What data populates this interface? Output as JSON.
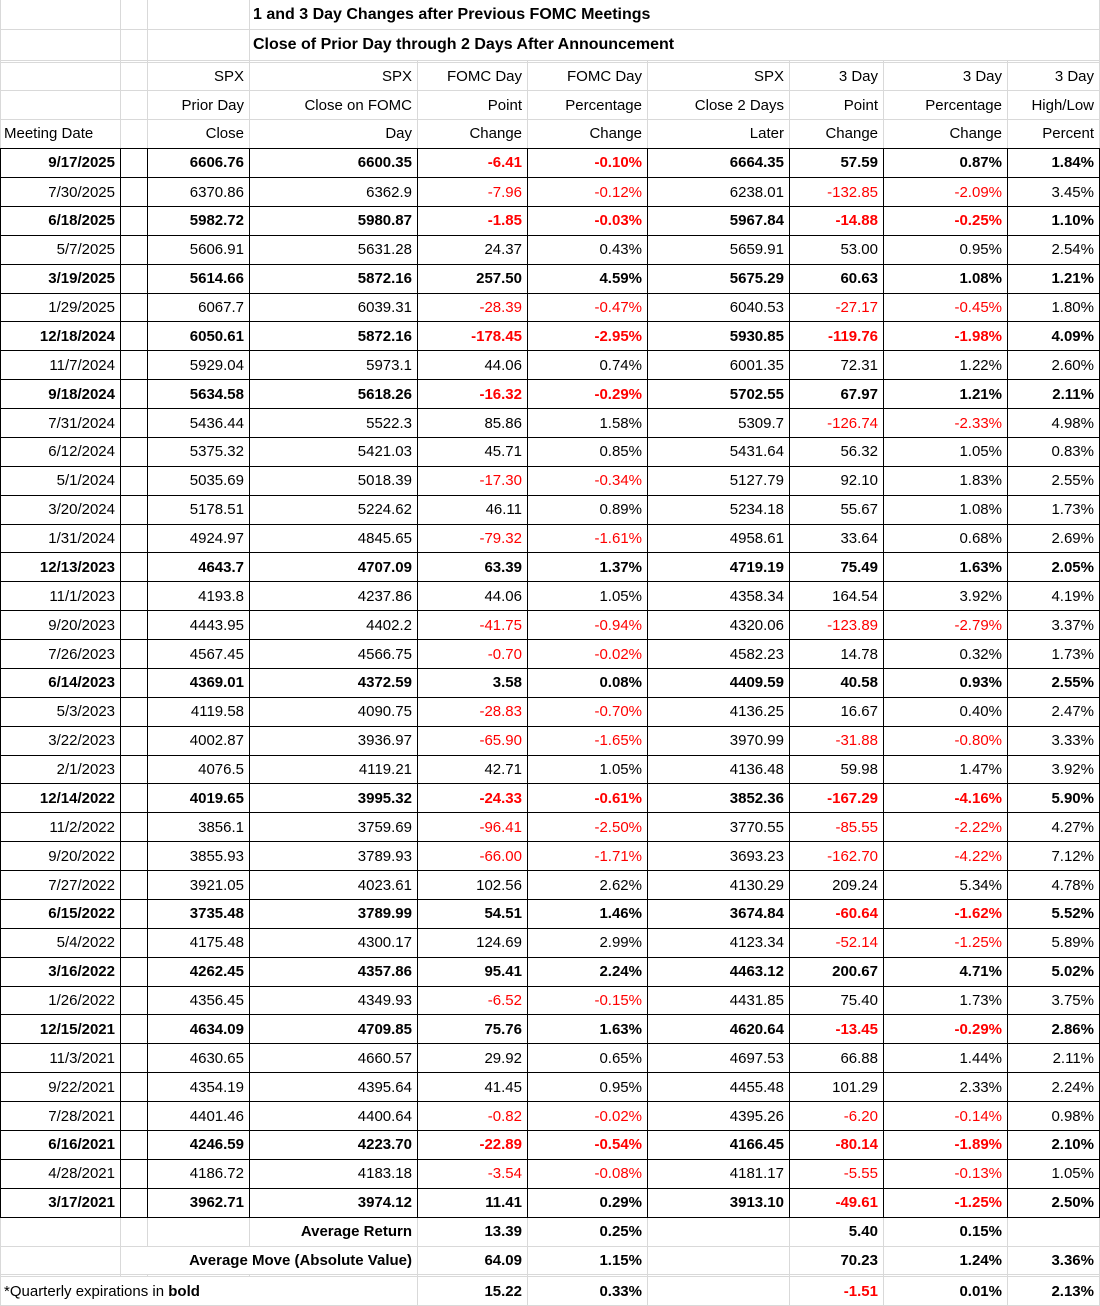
{
  "titles": {
    "line1": "1 and 3 Day Changes after Previous FOMC Meetings",
    "line2": "Close of Prior Day through 2 Days After Announcement"
  },
  "table": {
    "header_rows": [
      [
        "",
        "",
        "SPX",
        "SPX",
        "FOMC Day",
        "FOMC Day",
        "SPX",
        "3 Day",
        "3 Day",
        "3 Day"
      ],
      [
        "",
        "",
        "Prior Day",
        "Close on FOMC",
        "Point",
        "Percentage",
        "Close 2 Days",
        "Point",
        "Percentage",
        "High/Low"
      ],
      [
        "Meeting Date",
        "",
        "Close",
        "Day",
        "Change",
        "Change",
        "Later",
        "Change",
        "Change",
        "Percent"
      ]
    ],
    "col_names": [
      "meeting-date",
      "prior-day-close",
      "fomc-day-close",
      "fomc-point-change",
      "fomc-percentage-change",
      "close-2-days-later",
      "3day-point-change",
      "3day-percentage-change",
      "3day-highlow-percent"
    ],
    "rows": [
      {
        "c": [
          "9/17/2025",
          "6606.76",
          "6600.35",
          "-6.41",
          "-0.10%",
          "6664.35",
          "57.59",
          "0.87%",
          "1.84%"
        ],
        "q": true
      },
      {
        "c": [
          "7/30/2025",
          "6370.86",
          "6362.9",
          "-7.96",
          "-0.12%",
          "6238.01",
          "-132.85",
          "-2.09%",
          "3.45%"
        ],
        "q": false
      },
      {
        "c": [
          "6/18/2025",
          "5982.72",
          "5980.87",
          "-1.85",
          "-0.03%",
          "5967.84",
          "-14.88",
          "-0.25%",
          "1.10%"
        ],
        "q": true
      },
      {
        "c": [
          "5/7/2025",
          "5606.91",
          "5631.28",
          "24.37",
          "0.43%",
          "5659.91",
          "53.00",
          "0.95%",
          "2.54%"
        ],
        "q": false
      },
      {
        "c": [
          "3/19/2025",
          "5614.66",
          "5872.16",
          "257.50",
          "4.59%",
          "5675.29",
          "60.63",
          "1.08%",
          "1.21%"
        ],
        "q": true
      },
      {
        "c": [
          "1/29/2025",
          "6067.7",
          "6039.31",
          "-28.39",
          "-0.47%",
          "6040.53",
          "-27.17",
          "-0.45%",
          "1.80%"
        ],
        "q": false
      },
      {
        "c": [
          "12/18/2024",
          "6050.61",
          "5872.16",
          "-178.45",
          "-2.95%",
          "5930.85",
          "-119.76",
          "-1.98%",
          "4.09%"
        ],
        "q": true
      },
      {
        "c": [
          "11/7/2024",
          "5929.04",
          "5973.1",
          "44.06",
          "0.74%",
          "6001.35",
          "72.31",
          "1.22%",
          "2.60%"
        ],
        "q": false
      },
      {
        "c": [
          "9/18/2024",
          "5634.58",
          "5618.26",
          "-16.32",
          "-0.29%",
          "5702.55",
          "67.97",
          "1.21%",
          "2.11%"
        ],
        "q": true
      },
      {
        "c": [
          "7/31/2024",
          "5436.44",
          "5522.3",
          "85.86",
          "1.58%",
          "5309.7",
          "-126.74",
          "-2.33%",
          "4.98%"
        ],
        "q": false
      },
      {
        "c": [
          "6/12/2024",
          "5375.32",
          "5421.03",
          "45.71",
          "0.85%",
          "5431.64",
          "56.32",
          "1.05%",
          "0.83%"
        ],
        "q": false
      },
      {
        "c": [
          "5/1/2024",
          "5035.69",
          "5018.39",
          "-17.30",
          "-0.34%",
          "5127.79",
          "92.10",
          "1.83%",
          "2.55%"
        ],
        "q": false
      },
      {
        "c": [
          "3/20/2024",
          "5178.51",
          "5224.62",
          "46.11",
          "0.89%",
          "5234.18",
          "55.67",
          "1.08%",
          "1.73%"
        ],
        "q": false
      },
      {
        "c": [
          "1/31/2024",
          "4924.97",
          "4845.65",
          "-79.32",
          "-1.61%",
          "4958.61",
          "33.64",
          "0.68%",
          "2.69%"
        ],
        "q": false
      },
      {
        "c": [
          "12/13/2023",
          "4643.7",
          "4707.09",
          "63.39",
          "1.37%",
          "4719.19",
          "75.49",
          "1.63%",
          "2.05%"
        ],
        "q": true
      },
      {
        "c": [
          "11/1/2023",
          "4193.8",
          "4237.86",
          "44.06",
          "1.05%",
          "4358.34",
          "164.54",
          "3.92%",
          "4.19%"
        ],
        "q": false
      },
      {
        "c": [
          "9/20/2023",
          "4443.95",
          "4402.2",
          "-41.75",
          "-0.94%",
          "4320.06",
          "-123.89",
          "-2.79%",
          "3.37%"
        ],
        "q": false
      },
      {
        "c": [
          "7/26/2023",
          "4567.45",
          "4566.75",
          "-0.70",
          "-0.02%",
          "4582.23",
          "14.78",
          "0.32%",
          "1.73%"
        ],
        "q": false
      },
      {
        "c": [
          "6/14/2023",
          "4369.01",
          "4372.59",
          "3.58",
          "0.08%",
          "4409.59",
          "40.58",
          "0.93%",
          "2.55%"
        ],
        "q": true
      },
      {
        "c": [
          "5/3/2023",
          "4119.58",
          "4090.75",
          "-28.83",
          "-0.70%",
          "4136.25",
          "16.67",
          "0.40%",
          "2.47%"
        ],
        "q": false
      },
      {
        "c": [
          "3/22/2023",
          "4002.87",
          "3936.97",
          "-65.90",
          "-1.65%",
          "3970.99",
          "-31.88",
          "-0.80%",
          "3.33%"
        ],
        "q": false
      },
      {
        "c": [
          "2/1/2023",
          "4076.5",
          "4119.21",
          "42.71",
          "1.05%",
          "4136.48",
          "59.98",
          "1.47%",
          "3.92%"
        ],
        "q": false
      },
      {
        "c": [
          "12/14/2022",
          "4019.65",
          "3995.32",
          "-24.33",
          "-0.61%",
          "3852.36",
          "-167.29",
          "-4.16%",
          "5.90%"
        ],
        "q": true
      },
      {
        "c": [
          "11/2/2022",
          "3856.1",
          "3759.69",
          "-96.41",
          "-2.50%",
          "3770.55",
          "-85.55",
          "-2.22%",
          "4.27%"
        ],
        "q": false
      },
      {
        "c": [
          "9/20/2022",
          "3855.93",
          "3789.93",
          "-66.00",
          "-1.71%",
          "3693.23",
          "-162.70",
          "-4.22%",
          "7.12%"
        ],
        "q": false
      },
      {
        "c": [
          "7/27/2022",
          "3921.05",
          "4023.61",
          "102.56",
          "2.62%",
          "4130.29",
          "209.24",
          "5.34%",
          "4.78%"
        ],
        "q": false
      },
      {
        "c": [
          "6/15/2022",
          "3735.48",
          "3789.99",
          "54.51",
          "1.46%",
          "3674.84",
          "-60.64",
          "-1.62%",
          "5.52%"
        ],
        "q": true
      },
      {
        "c": [
          "5/4/2022",
          "4175.48",
          "4300.17",
          "124.69",
          "2.99%",
          "4123.34",
          "-52.14",
          "-1.25%",
          "5.89%"
        ],
        "q": false
      },
      {
        "c": [
          "3/16/2022",
          "4262.45",
          "4357.86",
          "95.41",
          "2.24%",
          "4463.12",
          "200.67",
          "4.71%",
          "5.02%"
        ],
        "q": true
      },
      {
        "c": [
          "1/26/2022",
          "4356.45",
          "4349.93",
          "-6.52",
          "-0.15%",
          "4431.85",
          "75.40",
          "1.73%",
          "3.75%"
        ],
        "q": false
      },
      {
        "c": [
          "12/15/2021",
          "4634.09",
          "4709.85",
          "75.76",
          "1.63%",
          "4620.64",
          "-13.45",
          "-0.29%",
          "2.86%"
        ],
        "q": true
      },
      {
        "c": [
          "11/3/2021",
          "4630.65",
          "4660.57",
          "29.92",
          "0.65%",
          "4697.53",
          "66.88",
          "1.44%",
          "2.11%"
        ],
        "q": false
      },
      {
        "c": [
          "9/22/2021",
          "4354.19",
          "4395.64",
          "41.45",
          "0.95%",
          "4455.48",
          "101.29",
          "2.33%",
          "2.24%"
        ],
        "q": false
      },
      {
        "c": [
          "7/28/2021",
          "4401.46",
          "4400.64",
          "-0.82",
          "-0.02%",
          "4395.26",
          "-6.20",
          "-0.14%",
          "0.98%"
        ],
        "q": false
      },
      {
        "c": [
          "6/16/2021",
          "4246.59",
          "4223.70",
          "-22.89",
          "-0.54%",
          "4166.45",
          "-80.14",
          "-1.89%",
          "2.10%"
        ],
        "q": true
      },
      {
        "c": [
          "4/28/2021",
          "4186.72",
          "4183.18",
          "-3.54",
          "-0.08%",
          "4181.17",
          "-5.55",
          "-0.13%",
          "1.05%"
        ],
        "q": false
      },
      {
        "c": [
          "3/17/2021",
          "3962.71",
          "3974.12",
          "11.41",
          "0.29%",
          "3913.10",
          "-49.61",
          "-1.25%",
          "2.50%"
        ],
        "q": true
      }
    ],
    "summary": {
      "avg_return_label": "Average Return",
      "avg_return": {
        "fomc_pt": "13.39",
        "fomc_pct": "0.25%",
        "pt3": "5.40",
        "pct3": "0.15%"
      },
      "avg_move_label": "Average Move (Absolute Value)",
      "avg_move": {
        "fomc_pt": "64.09",
        "fomc_pct": "1.15%",
        "pt3": "70.23",
        "pct3": "1.24%",
        "hl": "3.36%"
      }
    },
    "footnote": {
      "prefix": "*Quarterly expirations in ",
      "bold_word": "bold",
      "fomc_pt": "15.22",
      "fomc_pct": "0.33%",
      "pt3": "-1.51",
      "pct3": "0.01%",
      "hl": "2.13%"
    }
  },
  "colors": {
    "negative": "#FF0000",
    "text": "#000000",
    "gridline": "#D9D9D9",
    "table_border": "#000000",
    "background": "#FFFFFF"
  }
}
